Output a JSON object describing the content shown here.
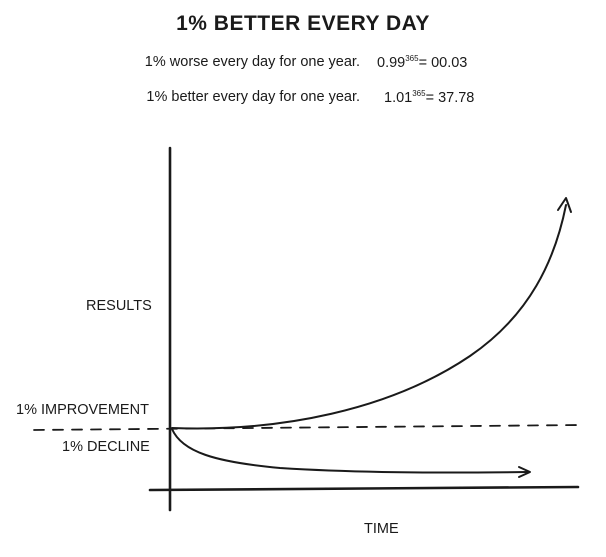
{
  "title": "1% BETTER EVERY DAY",
  "equations": [
    {
      "label": "1% worse every day for one year.",
      "base": "0.99",
      "exponent": "365",
      "result": "= 00.03"
    },
    {
      "label": "1% better every day for one year.",
      "base": "1.01",
      "exponent": "365",
      "result": "= 37.78"
    }
  ],
  "diagram": {
    "y_axis_label": "RESULTS",
    "x_axis_label": "TIME",
    "improvement_label": "1% IMPROVEMENT",
    "decline_label": "1% DECLINE",
    "line_color": "#1a1a1a"
  }
}
